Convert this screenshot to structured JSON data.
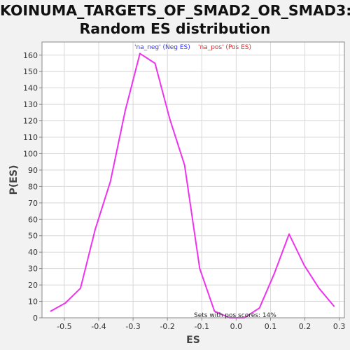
{
  "chart_data": {
    "type": "line",
    "title_line1": "KOINUMA_TARGETS_OF_SMAD2_OR_SMAD3:",
    "title_line2": "Random ES distribution",
    "xlabel": "ES",
    "ylabel": "P(ES)",
    "xlim": [
      -0.565,
      0.315
    ],
    "ylim": [
      0,
      168
    ],
    "x_ticks": [
      -0.5,
      -0.4,
      -0.3,
      -0.2,
      -0.1,
      0.0,
      0.1,
      0.2,
      0.3
    ],
    "x_tick_labels": [
      "-0.5",
      "-0.4",
      "-0.3",
      "-0.2",
      "-0.1",
      "0.0",
      "0.1",
      "0.2",
      "0.3"
    ],
    "y_ticks": [
      0,
      10,
      20,
      30,
      40,
      50,
      60,
      70,
      80,
      90,
      100,
      110,
      120,
      130,
      140,
      150,
      160
    ],
    "grid": true,
    "legend_position": "top-center",
    "legend": [
      {
        "label": "'na_neg' (Neg ES)",
        "color": "#3333ff"
      },
      {
        "label": "'na_pos' (Pos ES)",
        "color": "#ee2222"
      }
    ],
    "annotation": "Sets with pos scores: 14%",
    "line_color": "#ee33ee",
    "series": [
      {
        "x": [
          -0.54,
          -0.497,
          -0.453,
          -0.41,
          -0.366,
          -0.323,
          -0.28,
          -0.236,
          -0.193,
          -0.15,
          -0.106,
          -0.063,
          -0.019,
          0.024,
          0.068,
          0.111,
          0.154,
          0.198,
          0.241,
          0.285
        ],
        "y": [
          4,
          9,
          18,
          54,
          83,
          126,
          161,
          155,
          121,
          93,
          30,
          4,
          0,
          0,
          6,
          27,
          51,
          32,
          18,
          7
        ]
      }
    ]
  }
}
